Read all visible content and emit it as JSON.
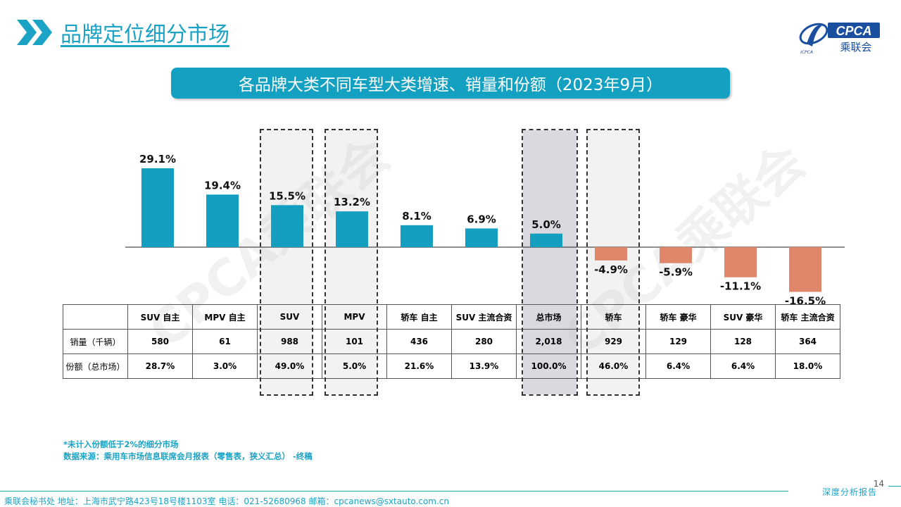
{
  "header": {
    "title": "品牌定位细分市场",
    "logo_text": "CPCA",
    "logo_cn": "乘联会",
    "logo_small": "ICPCA"
  },
  "banner": "各品牌大类不同车型大类增速、销量和份额（2023年9月）",
  "watermark": "CPCA乘联会",
  "colors": {
    "accent": "#1aa3c4",
    "positive": "#149fc0",
    "negative": "#e0866a",
    "highlight_dark": "#d9d9df",
    "highlight_light": "#f2f2f2"
  },
  "chart_data": {
    "type": "bar",
    "categories": [
      "SUV 自主",
      "MPV 自主",
      "SUV",
      "MPV",
      "轿车 自主",
      "SUV 主流合资",
      "总市场",
      "轿车",
      "轿车 豪华",
      "SUV 豪华",
      "轿车 主流合资"
    ],
    "values": [
      29.1,
      19.4,
      15.5,
      13.2,
      8.1,
      6.9,
      5.0,
      -4.9,
      -5.9,
      -11.1,
      -16.5
    ],
    "value_labels": [
      "29.1%",
      "19.4%",
      "15.5%",
      "13.2%",
      "8.1%",
      "6.9%",
      "5.0%",
      "-4.9%",
      "-5.9%",
      "-11.1%",
      "-16.5%"
    ],
    "ylim": [
      -17,
      30
    ],
    "highlighted": [
      "SUV",
      "MPV",
      "总市场",
      "轿车"
    ],
    "grid": false,
    "title": "",
    "xlabel": "",
    "ylabel": ""
  },
  "table": {
    "rows": [
      {
        "label": "销量（千辆）",
        "values": [
          "580",
          "61",
          "988",
          "101",
          "436",
          "280",
          "2,018",
          "929",
          "129",
          "128",
          "364"
        ]
      },
      {
        "label": "份额（总市场）",
        "values": [
          "28.7%",
          "3.0%",
          "49.0%",
          "5.0%",
          "21.6%",
          "13.9%",
          "100.0%",
          "46.0%",
          "6.4%",
          "6.4%",
          "18.0%"
        ]
      }
    ]
  },
  "footnote": {
    "line1": "*未计入份额低于2%的细分市场",
    "line2": "数据来源：乘用车市场信息联席会月报表（零售表，狭义汇总）    -终稿"
  },
  "page_number": "14",
  "footer": {
    "text": "乘联会秘书处    地址：上海市武宁路423号18号楼1103室    电话：021-52680968    邮箱：cpcanews@sxtauto.com.cn",
    "tag": "深度分析报告"
  }
}
